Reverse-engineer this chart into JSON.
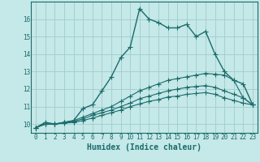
{
  "xlabel": "Humidex (Indice chaleur)",
  "bg_color": "#c5e8e8",
  "grid_color": "#a0cccc",
  "line_color": "#1a6b6b",
  "xlim": [
    -0.5,
    23.5
  ],
  "ylim": [
    9.5,
    17.0
  ],
  "xticks": [
    0,
    1,
    2,
    3,
    4,
    5,
    6,
    7,
    8,
    9,
    10,
    11,
    12,
    13,
    14,
    15,
    16,
    17,
    18,
    19,
    20,
    21,
    22,
    23
  ],
  "yticks": [
    10,
    11,
    12,
    13,
    14,
    15,
    16
  ],
  "series": [
    [
      9.8,
      10.1,
      10.0,
      10.1,
      10.2,
      10.9,
      11.1,
      11.9,
      12.7,
      13.8,
      14.4,
      16.6,
      16.0,
      15.8,
      15.5,
      15.5,
      15.7,
      15.0,
      15.3,
      14.0,
      13.0,
      12.5,
      12.3,
      11.1
    ],
    [
      9.8,
      10.0,
      10.0,
      10.1,
      10.2,
      10.4,
      10.6,
      10.8,
      11.0,
      11.3,
      11.6,
      11.9,
      12.1,
      12.3,
      12.5,
      12.6,
      12.7,
      12.8,
      12.9,
      12.85,
      12.8,
      12.5,
      11.5,
      11.1
    ],
    [
      9.8,
      10.0,
      10.0,
      10.1,
      10.15,
      10.3,
      10.5,
      10.65,
      10.8,
      11.0,
      11.2,
      11.45,
      11.6,
      11.75,
      11.9,
      12.0,
      12.1,
      12.15,
      12.2,
      12.1,
      11.9,
      11.7,
      11.5,
      11.1
    ],
    [
      9.8,
      10.0,
      10.0,
      10.05,
      10.1,
      10.2,
      10.35,
      10.5,
      10.65,
      10.8,
      11.0,
      11.15,
      11.3,
      11.4,
      11.55,
      11.6,
      11.7,
      11.75,
      11.8,
      11.7,
      11.5,
      11.35,
      11.2,
      11.1
    ]
  ],
  "xlabel_fontsize": 7,
  "tick_fontsize": 5.5
}
